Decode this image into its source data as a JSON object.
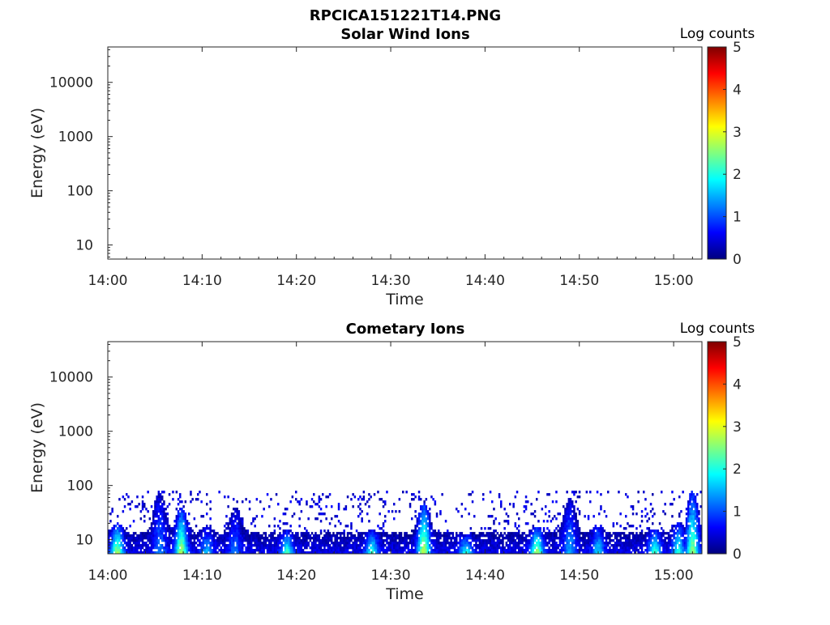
{
  "figure_title": "RPCICA151221T14.PNG",
  "chart_data": [
    {
      "type": "heatmap",
      "title": "Solar Wind Ions",
      "xlabel": "Time",
      "ylabel": "Energy (eV)",
      "x_ticks": [
        "14:00",
        "14:10",
        "14:20",
        "14:30",
        "14:40",
        "14:50",
        "15:00"
      ],
      "xlim": [
        "14:00",
        "15:03"
      ],
      "y_scale": "log",
      "y_ticks": [
        10,
        100,
        1000,
        10000
      ],
      "ylim": [
        5.5,
        45000
      ],
      "colorbar": {
        "label": "Log counts",
        "ticks": [
          0,
          1,
          2,
          3,
          4,
          5
        ],
        "range": [
          0,
          5
        ],
        "colormap": "jet"
      },
      "data_summary": "no counts recorded"
    },
    {
      "type": "heatmap",
      "title": "Cometary Ions",
      "xlabel": "Time",
      "ylabel": "Energy (eV)",
      "x_ticks": [
        "14:00",
        "14:10",
        "14:20",
        "14:30",
        "14:40",
        "14:50",
        "15:00"
      ],
      "xlim": [
        "14:00",
        "15:03"
      ],
      "y_scale": "log",
      "y_ticks": [
        10,
        100,
        1000,
        10000
      ],
      "ylim": [
        5.5,
        45000
      ],
      "colorbar": {
        "label": "Log counts",
        "ticks": [
          0,
          1,
          2,
          3,
          4,
          5
        ],
        "range": [
          0,
          5
        ],
        "colormap": "jet"
      },
      "energy_max": 80,
      "peaks": [
        {
          "t": "14:01",
          "logc": 2.8,
          "h": 20
        },
        {
          "t": "14:05.5",
          "logc": 1.3,
          "h": 80
        },
        {
          "t": "14:07.8",
          "logc": 2.8,
          "h": 40
        },
        {
          "t": "14:10.5",
          "logc": 1.6,
          "h": 18
        },
        {
          "t": "14:13.5",
          "logc": 1.2,
          "h": 40
        },
        {
          "t": "14:19",
          "logc": 2.3,
          "h": 15
        },
        {
          "t": "14:28",
          "logc": 2.2,
          "h": 15
        },
        {
          "t": "14:33.5",
          "logc": 2.9,
          "h": 50
        },
        {
          "t": "14:38",
          "logc": 2.1,
          "h": 12
        },
        {
          "t": "14:45.5",
          "logc": 2.8,
          "h": 18
        },
        {
          "t": "14:49",
          "logc": 1.5,
          "h": 60
        },
        {
          "t": "14:52",
          "logc": 1.8,
          "h": 20
        },
        {
          "t": "14:58",
          "logc": 2.3,
          "h": 16
        },
        {
          "t": "15:00.5",
          "logc": 2.1,
          "h": 22
        },
        {
          "t": "15:02",
          "logc": 2.6,
          "h": 80
        }
      ]
    }
  ]
}
